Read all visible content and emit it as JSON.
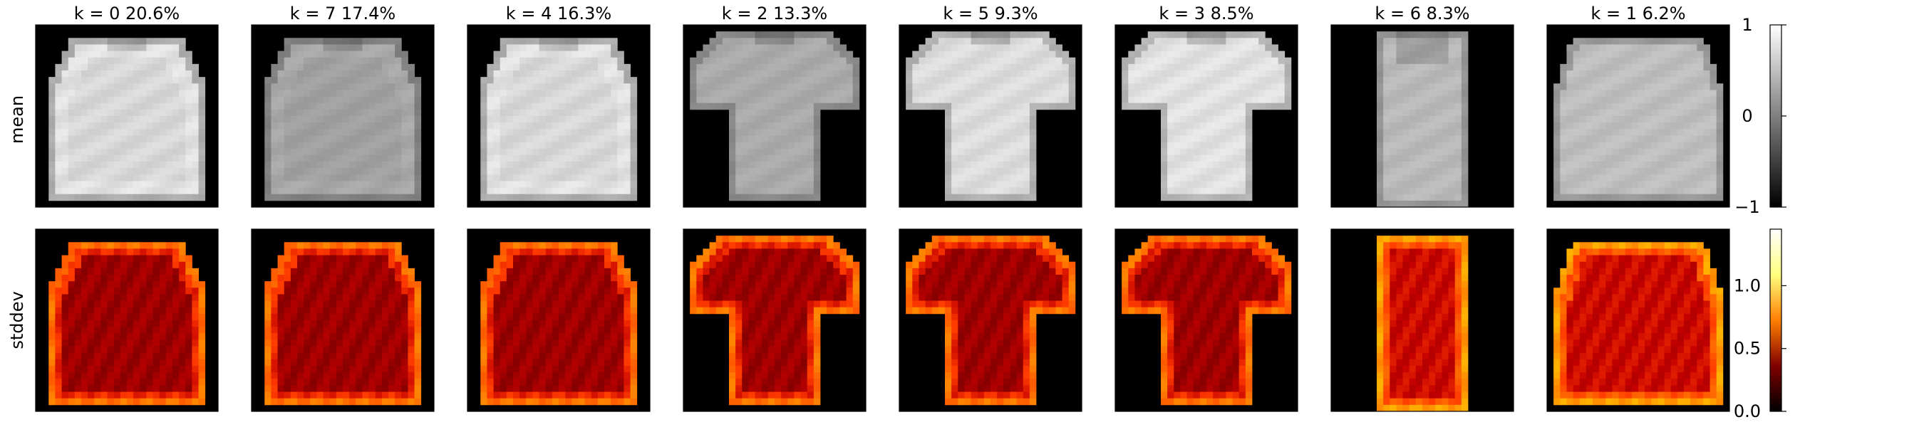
{
  "chart_data": [
    {
      "type": "heatmap",
      "description_row": "mean",
      "row_label": "mean",
      "panels": [
        {
          "title": "k = 0  20.6%",
          "k": 0,
          "weight_pct": 20.6,
          "garment": "pullover"
        },
        {
          "title": "k = 7  17.4%",
          "k": 7,
          "weight_pct": 17.4,
          "garment": "pullover"
        },
        {
          "title": "k = 4  16.3%",
          "k": 4,
          "weight_pct": 16.3,
          "garment": "pullover"
        },
        {
          "title": "k = 2  13.3%",
          "k": 2,
          "weight_pct": 13.3,
          "garment": "tshirt"
        },
        {
          "title": "k = 5   9.3%",
          "k": 5,
          "weight_pct": 9.3,
          "garment": "tshirt"
        },
        {
          "title": "k = 3   8.5%",
          "k": 3,
          "weight_pct": 8.5,
          "garment": "tshirt"
        },
        {
          "title": "k = 6   8.3%",
          "k": 6,
          "weight_pct": 8.3,
          "garment": "dress"
        },
        {
          "title": "k = 1   6.2%",
          "k": 1,
          "weight_pct": 6.2,
          "garment": "shirt"
        }
      ],
      "colormap": "gray",
      "colorbar": {
        "range": [
          -1,
          1
        ],
        "ticks": [
          -1,
          0,
          1
        ],
        "tick_labels": [
          "−1",
          "0",
          "1"
        ]
      }
    },
    {
      "type": "heatmap",
      "row_label": "stddev",
      "panels": [
        {
          "k": 0
        },
        {
          "k": 7
        },
        {
          "k": 4
        },
        {
          "k": 2
        },
        {
          "k": 5
        },
        {
          "k": 3
        },
        {
          "k": 6
        },
        {
          "k": 1
        }
      ],
      "colormap": "afmhot",
      "colorbar": {
        "range": [
          0,
          1.45
        ],
        "ticks": [
          0.0,
          0.5,
          1.0
        ],
        "tick_labels": [
          "0.0",
          "0.5",
          "1.0"
        ]
      }
    }
  ],
  "colors": {
    "background": "#000000",
    "axis": "#000000"
  }
}
